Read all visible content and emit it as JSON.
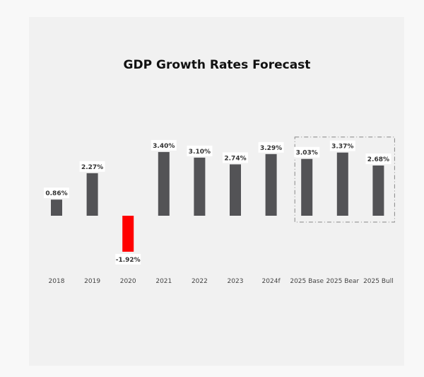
{
  "chart_data": {
    "type": "bar",
    "title": "GDP Growth Rates Forecast",
    "categories": [
      "2018",
      "2019",
      "2020",
      "2021",
      "2022",
      "2023",
      "2024f",
      "2025 Base",
      "2025 Bear",
      "2025 Bull"
    ],
    "values": [
      0.86,
      2.27,
      -1.92,
      3.4,
      3.1,
      2.74,
      3.29,
      3.03,
      3.37,
      2.68
    ],
    "data_labels": [
      "0.86%",
      "2.27%",
      "-1.92%",
      "3.40%",
      "3.10%",
      "2.74%",
      "3.29%",
      "3.03%",
      "3.37%",
      "2.68%"
    ],
    "xlabel": "",
    "ylabel": "",
    "grid": false,
    "highlighted_group": [
      "2025 Base",
      "2025 Bear",
      "2025 Bull"
    ],
    "colors": {
      "positive": "#535356",
      "negative": "#ff0000",
      "label_bg": "#ffffff",
      "group_border": "#888888"
    }
  }
}
